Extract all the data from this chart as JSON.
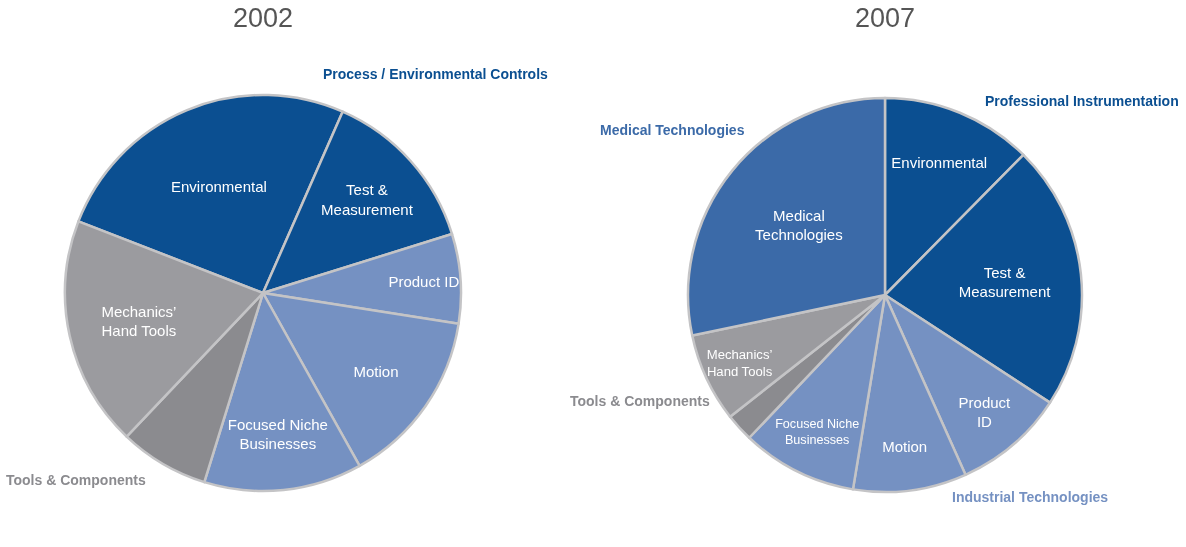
{
  "chart_data": [
    {
      "type": "pie",
      "title": "2002",
      "categories": [
        "Environmental",
        "Test &\nMeasurement",
        "Product ID",
        "Motion",
        "Focused Niche\nBusinesses",
        null,
        "Mechanics’\nHand Tools"
      ],
      "values": [
        25.7,
        13.6,
        7.3,
        14.4,
        12.9,
        7.3,
        18.8
      ],
      "colors": [
        "#0b4f91",
        "#0b4f91",
        "#7591c2",
        "#7591c2",
        "#7591c2",
        "#8b8b8f",
        "#9b9b9f"
      ],
      "annotations": [
        "Process / Environmental Controls",
        "Tools & Components"
      ]
    },
    {
      "type": "pie",
      "title": "2007",
      "categories": [
        "Environmental",
        "Test &\nMeasurement",
        "Product\nID",
        "Motion",
        "Focused Niche\nBusinesses",
        null,
        "Mechanics’\nHand Tools",
        "Medical\nTechnologies"
      ],
      "values": [
        12.4,
        21.8,
        9.1,
        9.3,
        9.5,
        2.3,
        7.3,
        28.3
      ],
      "colors": [
        "#0b4f91",
        "#0b4f91",
        "#7591c2",
        "#7591c2",
        "#7591c2",
        "#8b8b8f",
        "#9b9b9f",
        "#3b6aa8"
      ],
      "annotations": [
        "Medical Technologies",
        "Professional Instrumentation",
        "Tools & Components",
        "Industrial Technologies"
      ]
    }
  ]
}
